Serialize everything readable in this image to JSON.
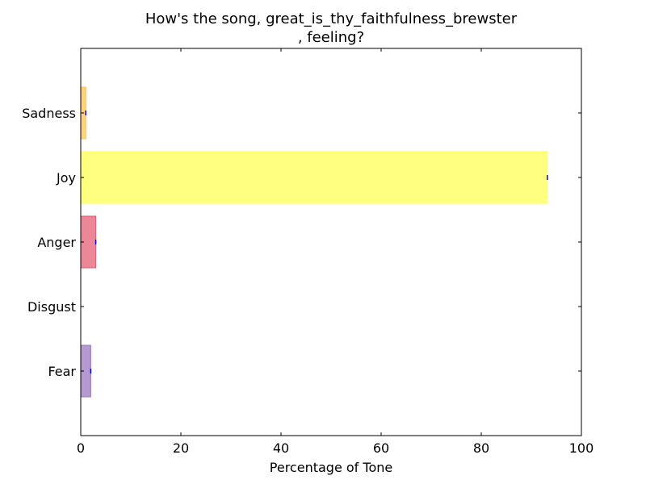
{
  "chart_data": {
    "type": "bar",
    "orientation": "horizontal",
    "title_lines": [
      "How's the song, great_is_thy_faithfulness_brewster",
      ", feeling?"
    ],
    "xlabel": "Percentage of Tone",
    "ylabel": "",
    "xlim": [
      0,
      100
    ],
    "xticks": [
      0,
      20,
      40,
      60,
      80,
      100
    ],
    "categories": [
      "Sadness",
      "Joy",
      "Anger",
      "Disgust",
      "Fear"
    ],
    "values": [
      1.0,
      93.2,
      3.0,
      0.0,
      2.0
    ],
    "colors": [
      "#ffd280",
      "#ffff80",
      "#eb8796",
      "#cccccc",
      "#b49ad1"
    ],
    "edge_colors": [
      "#ffc050",
      "#ffff50",
      "#e05a70",
      "#aaaaaa",
      "#9a78c0"
    ],
    "error_marker_color": "#0000ff",
    "grid": false,
    "legend": "none"
  }
}
